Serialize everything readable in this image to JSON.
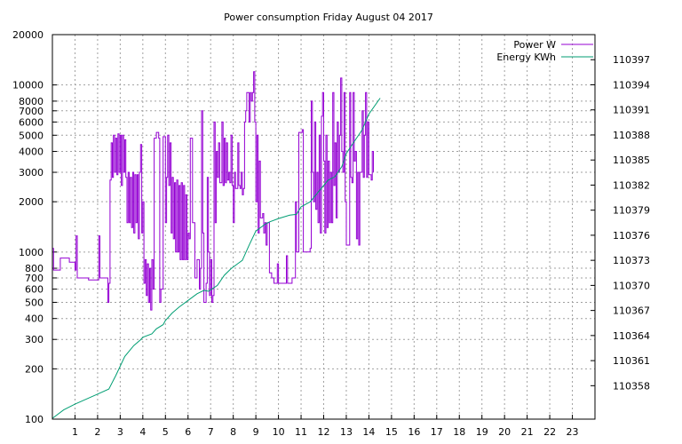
{
  "chart_data": {
    "type": "line",
    "title": "Power consumption Friday August 04 2017",
    "x_ticks": [
      1,
      2,
      3,
      4,
      5,
      6,
      7,
      8,
      9,
      10,
      11,
      12,
      13,
      14,
      15,
      16,
      17,
      18,
      19,
      20,
      21,
      22,
      23
    ],
    "xlim": [
      0,
      24
    ],
    "y_left": {
      "scale": "log",
      "lim": [
        100,
        20000
      ],
      "ticks": [
        100,
        200,
        300,
        400,
        500,
        600,
        700,
        800,
        1000,
        2000,
        3000,
        4000,
        5000,
        6000,
        7000,
        8000,
        10000,
        20000
      ]
    },
    "y_right": {
      "scale": "linear",
      "lim": [
        110354,
        110400
      ],
      "ticks": [
        110358,
        110361,
        110364,
        110367,
        110370,
        110373,
        110376,
        110379,
        110382,
        110385,
        110388,
        110391,
        110394,
        110397
      ]
    },
    "grid": true,
    "legend_position": "top-right",
    "series": [
      {
        "name": "Power W",
        "axis": "left",
        "color": "#9400d3",
        "points": [
          [
            0.0,
            1050
          ],
          [
            0.05,
            780
          ],
          [
            0.3,
            780
          ],
          [
            0.35,
            920
          ],
          [
            0.7,
            920
          ],
          [
            0.75,
            870
          ],
          [
            0.95,
            870
          ],
          [
            1.0,
            780
          ],
          [
            1.05,
            1250
          ],
          [
            1.1,
            700
          ],
          [
            1.2,
            700
          ],
          [
            1.6,
            680
          ],
          [
            2.0,
            680
          ],
          [
            2.05,
            1250
          ],
          [
            2.1,
            700
          ],
          [
            2.4,
            700
          ],
          [
            2.45,
            500
          ],
          [
            2.5,
            650
          ],
          [
            2.55,
            2700
          ],
          [
            2.6,
            4500
          ],
          [
            2.65,
            2800
          ],
          [
            2.7,
            5000
          ],
          [
            2.75,
            3000
          ],
          [
            2.8,
            4800
          ],
          [
            2.85,
            2900
          ],
          [
            2.9,
            5100
          ],
          [
            2.95,
            3000
          ],
          [
            3.0,
            5000
          ],
          [
            3.05,
            2500
          ],
          [
            3.1,
            5000
          ],
          [
            3.15,
            3000
          ],
          [
            3.2,
            4700
          ],
          [
            3.25,
            2800
          ],
          [
            3.3,
            1500
          ],
          [
            3.35,
            3000
          ],
          [
            3.4,
            1500
          ],
          [
            3.45,
            2800
          ],
          [
            3.5,
            1400
          ],
          [
            3.55,
            3000
          ],
          [
            3.6,
            1300
          ],
          [
            3.65,
            2900
          ],
          [
            3.7,
            1500
          ],
          [
            3.75,
            2900
          ],
          [
            3.8,
            1200
          ],
          [
            3.85,
            3000
          ],
          [
            3.9,
            4400
          ],
          [
            3.95,
            1300
          ],
          [
            4.0,
            2000
          ],
          [
            4.05,
            650
          ],
          [
            4.1,
            900
          ],
          [
            4.15,
            550
          ],
          [
            4.2,
            850
          ],
          [
            4.25,
            500
          ],
          [
            4.3,
            800
          ],
          [
            4.35,
            450
          ],
          [
            4.4,
            900
          ],
          [
            4.45,
            600
          ],
          [
            4.5,
            4800
          ],
          [
            4.6,
            5200
          ],
          [
            4.7,
            4800
          ],
          [
            4.75,
            500
          ],
          [
            4.8,
            600
          ],
          [
            4.9,
            4900
          ],
          [
            5.0,
            1500
          ],
          [
            5.05,
            2800
          ],
          [
            5.1,
            5000
          ],
          [
            5.15,
            2500
          ],
          [
            5.2,
            4500
          ],
          [
            5.25,
            1300
          ],
          [
            5.3,
            2800
          ],
          [
            5.35,
            1200
          ],
          [
            5.4,
            2600
          ],
          [
            5.45,
            1000
          ],
          [
            5.5,
            2700
          ],
          [
            5.55,
            1000
          ],
          [
            5.6,
            2500
          ],
          [
            5.65,
            900
          ],
          [
            5.7,
            2600
          ],
          [
            5.75,
            900
          ],
          [
            5.8,
            2500
          ],
          [
            5.85,
            900
          ],
          [
            5.9,
            2200
          ],
          [
            5.95,
            900
          ],
          [
            6.0,
            1300
          ],
          [
            6.05,
            1200
          ],
          [
            6.1,
            4800
          ],
          [
            6.2,
            1500
          ],
          [
            6.3,
            700
          ],
          [
            6.4,
            900
          ],
          [
            6.5,
            600
          ],
          [
            6.55,
            800
          ],
          [
            6.6,
            7000
          ],
          [
            6.65,
            1300
          ],
          [
            6.7,
            500
          ],
          [
            6.8,
            650
          ],
          [
            6.85,
            2800
          ],
          [
            6.9,
            1000
          ],
          [
            6.95,
            550
          ],
          [
            7.0,
            900
          ],
          [
            7.05,
            500
          ],
          [
            7.1,
            550
          ],
          [
            7.15,
            6000
          ],
          [
            7.2,
            1500
          ],
          [
            7.25,
            4000
          ],
          [
            7.3,
            2800
          ],
          [
            7.35,
            4500
          ],
          [
            7.4,
            2600
          ],
          [
            7.5,
            6000
          ],
          [
            7.55,
            2500
          ],
          [
            7.6,
            4800
          ],
          [
            7.65,
            2600
          ],
          [
            7.7,
            4500
          ],
          [
            7.75,
            2700
          ],
          [
            7.8,
            3000
          ],
          [
            7.85,
            2600
          ],
          [
            7.9,
            5000
          ],
          [
            7.95,
            2500
          ],
          [
            8.0,
            1500
          ],
          [
            8.05,
            3000
          ],
          [
            8.1,
            2400
          ],
          [
            8.2,
            4500
          ],
          [
            8.25,
            2500
          ],
          [
            8.3,
            2400
          ],
          [
            8.35,
            3000
          ],
          [
            8.4,
            2200
          ],
          [
            8.45,
            2400
          ],
          [
            8.5,
            6000
          ],
          [
            8.55,
            7000
          ],
          [
            8.6,
            9000
          ],
          [
            8.7,
            6000
          ],
          [
            8.75,
            9000
          ],
          [
            8.8,
            8000
          ],
          [
            8.85,
            9000
          ],
          [
            8.9,
            12000
          ],
          [
            8.95,
            6000
          ],
          [
            9.0,
            2000
          ],
          [
            9.05,
            5000
          ],
          [
            9.1,
            1300
          ],
          [
            9.15,
            3500
          ],
          [
            9.2,
            1600
          ],
          [
            9.3,
            1700
          ],
          [
            9.35,
            1300
          ],
          [
            9.4,
            1500
          ],
          [
            9.45,
            1100
          ],
          [
            9.5,
            1500
          ],
          [
            9.6,
            750
          ],
          [
            9.7,
            700
          ],
          [
            9.8,
            650
          ],
          [
            9.9,
            650
          ],
          [
            9.95,
            850
          ],
          [
            10.0,
            650
          ],
          [
            10.3,
            650
          ],
          [
            10.35,
            950
          ],
          [
            10.4,
            650
          ],
          [
            10.6,
            700
          ],
          [
            10.7,
            700
          ],
          [
            10.75,
            2000
          ],
          [
            10.8,
            1000
          ],
          [
            10.9,
            5200
          ],
          [
            11.05,
            5400
          ],
          [
            11.1,
            1000
          ],
          [
            11.3,
            1000
          ],
          [
            11.4,
            1050
          ],
          [
            11.45,
            8000
          ],
          [
            11.5,
            3000
          ],
          [
            11.55,
            2000
          ],
          [
            11.6,
            6000
          ],
          [
            11.65,
            1800
          ],
          [
            11.7,
            3000
          ],
          [
            11.75,
            1500
          ],
          [
            11.8,
            5000
          ],
          [
            11.85,
            1300
          ],
          [
            11.9,
            6500
          ],
          [
            11.95,
            9000
          ],
          [
            12.0,
            3500
          ],
          [
            12.05,
            1300
          ],
          [
            12.1,
            5000
          ],
          [
            12.15,
            1400
          ],
          [
            12.2,
            3500
          ],
          [
            12.25,
            1500
          ],
          [
            12.3,
            3000
          ],
          [
            12.35,
            1500
          ],
          [
            12.4,
            9000
          ],
          [
            12.45,
            2500
          ],
          [
            12.5,
            4500
          ],
          [
            12.55,
            1600
          ],
          [
            12.6,
            6000
          ],
          [
            12.65,
            3000
          ],
          [
            12.7,
            5000
          ],
          [
            12.75,
            11000
          ],
          [
            12.8,
            4000
          ],
          [
            12.85,
            3000
          ],
          [
            12.9,
            9000
          ],
          [
            12.95,
            2000
          ],
          [
            13.0,
            1100
          ],
          [
            13.1,
            1100
          ],
          [
            13.15,
            9000
          ],
          [
            13.2,
            2800
          ],
          [
            13.25,
            2600
          ],
          [
            13.3,
            9000
          ],
          [
            13.35,
            3500
          ],
          [
            13.4,
            4000
          ],
          [
            13.45,
            1200
          ],
          [
            13.5,
            3000
          ],
          [
            13.55,
            1100
          ],
          [
            13.6,
            3000
          ],
          [
            13.65,
            3000
          ],
          [
            13.7,
            7000
          ],
          [
            13.75,
            2800
          ],
          [
            13.8,
            5000
          ],
          [
            13.85,
            9000
          ],
          [
            13.9,
            2800
          ],
          [
            13.95,
            6000
          ],
          [
            14.0,
            2900
          ],
          [
            14.1,
            2700
          ],
          [
            14.15,
            4000
          ],
          [
            14.2,
            3000
          ]
        ]
      },
      {
        "name": "Energy KWh",
        "axis": "right",
        "color": "#009e73",
        "points": [
          [
            0.0,
            110354.1
          ],
          [
            0.5,
            110355.1
          ],
          [
            1.0,
            110355.8
          ],
          [
            1.5,
            110356.4
          ],
          [
            2.0,
            110357.0
          ],
          [
            2.5,
            110357.6
          ],
          [
            2.8,
            110359.2
          ],
          [
            3.2,
            110361.5
          ],
          [
            3.6,
            110362.8
          ],
          [
            3.9,
            110363.5
          ],
          [
            4.0,
            110363.8
          ],
          [
            4.4,
            110364.2
          ],
          [
            4.6,
            110364.8
          ],
          [
            4.9,
            110365.3
          ],
          [
            5.0,
            110365.8
          ],
          [
            5.3,
            110366.7
          ],
          [
            5.6,
            110367.4
          ],
          [
            6.0,
            110368.2
          ],
          [
            6.4,
            110369.0
          ],
          [
            6.7,
            110369.4
          ],
          [
            6.9,
            110369.3
          ],
          [
            7.3,
            110370.0
          ],
          [
            7.6,
            110371.2
          ],
          [
            7.9,
            110372.0
          ],
          [
            8.2,
            110372.6
          ],
          [
            8.4,
            110373.0
          ],
          [
            8.7,
            110374.8
          ],
          [
            9.0,
            110376.5
          ],
          [
            9.4,
            110377.3
          ],
          [
            9.6,
            110377.6
          ],
          [
            10.0,
            110378.0
          ],
          [
            10.5,
            110378.4
          ],
          [
            10.8,
            110378.5
          ],
          [
            11.0,
            110379.4
          ],
          [
            11.4,
            110380.0
          ],
          [
            11.8,
            110381.3
          ],
          [
            12.2,
            110382.6
          ],
          [
            12.5,
            110383.0
          ],
          [
            12.8,
            110384.2
          ],
          [
            13.0,
            110385.8
          ],
          [
            13.4,
            110387.4
          ],
          [
            13.7,
            110388.6
          ],
          [
            14.0,
            110390.5
          ],
          [
            14.5,
            110392.4
          ]
        ]
      }
    ]
  }
}
